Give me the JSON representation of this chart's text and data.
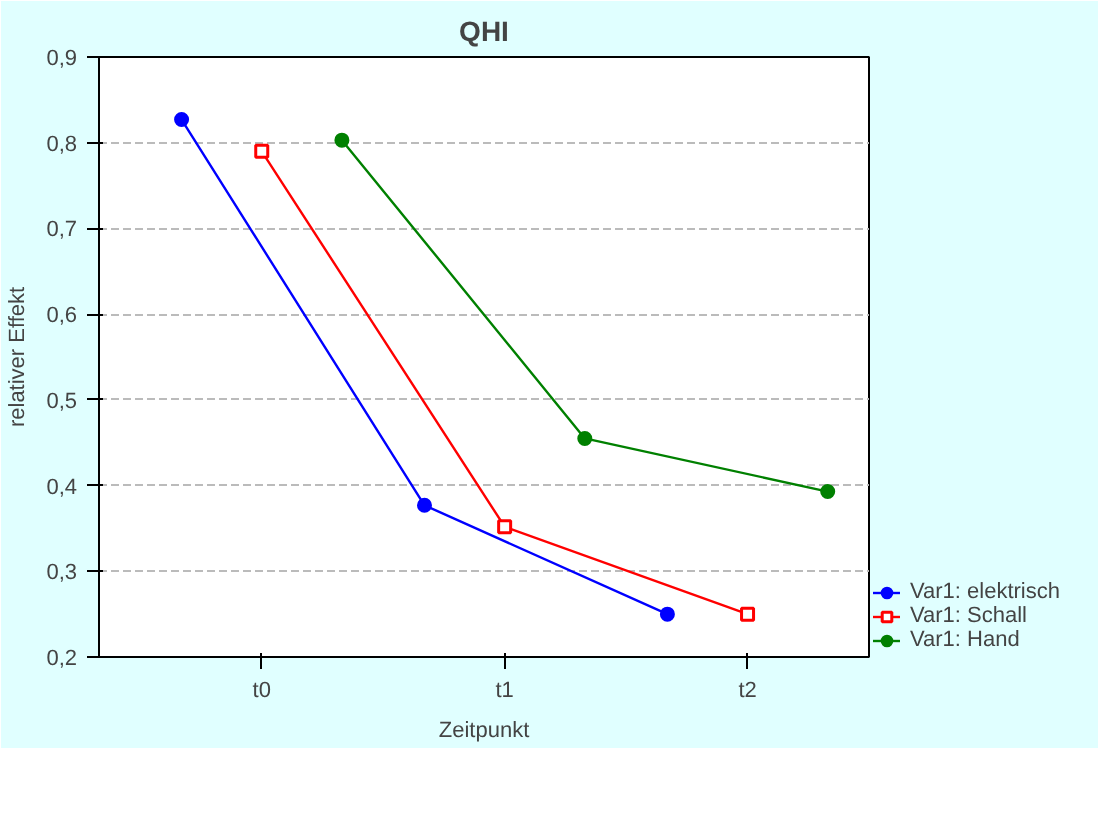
{
  "chart_data": {
    "type": "line",
    "title": "QHI",
    "xlabel": "Zeitpunkt",
    "ylabel": "relativer Effekt",
    "categories": [
      "t0",
      "t1",
      "t2"
    ],
    "ylim": [
      0.2,
      0.9
    ],
    "yticks": [
      {
        "value": 0.2,
        "label": "0,2"
      },
      {
        "value": 0.3,
        "label": "0,3"
      },
      {
        "value": 0.4,
        "label": "0,4"
      },
      {
        "value": 0.5,
        "label": "0,5"
      },
      {
        "value": 0.6,
        "label": "0,6"
      },
      {
        "value": 0.7,
        "label": "0,7"
      },
      {
        "value": 0.8,
        "label": "0,8"
      },
      {
        "value": 0.9,
        "label": "0,9"
      }
    ],
    "grid": "y",
    "legend": "bottom right",
    "series": [
      {
        "name": "Var1: elektrisch",
        "color": "#0000ff",
        "marker": "circle",
        "values": [
          0.827,
          0.377,
          0.25
        ]
      },
      {
        "name": "Var1: Schall",
        "color": "#ff0000",
        "marker": "square",
        "values": [
          0.79,
          0.352,
          0.25
        ]
      },
      {
        "name": "Var1: Hand",
        "color": "#008000",
        "marker": "circle",
        "values": [
          0.803,
          0.455,
          0.393
        ]
      }
    ]
  }
}
